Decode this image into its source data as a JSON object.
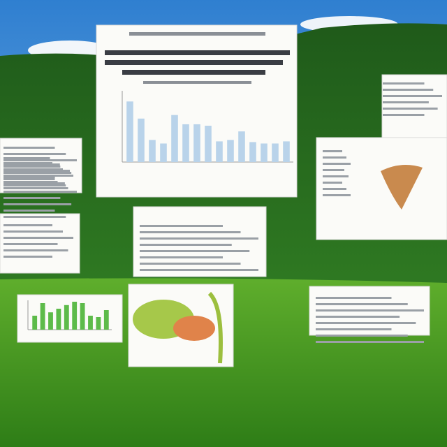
{
  "chart_data": [
    {
      "type": "bar",
      "categories": [
        null,
        null,
        null,
        null,
        null,
        null,
        null,
        null,
        null,
        null,
        null,
        null,
        null,
        null,
        null
      ],
      "values": [
        85,
        61,
        31,
        26,
        66,
        53,
        53,
        51,
        29,
        31,
        43,
        28,
        26,
        26,
        29
      ],
      "color": "#b9d3ea",
      "ylim": [
        0,
        100
      ]
    },
    {
      "type": "bar",
      "categories": [
        null,
        null,
        null,
        null,
        null,
        null,
        null,
        null,
        null,
        null
      ],
      "values": [
        50,
        95,
        62,
        75,
        88,
        100,
        95,
        50,
        45,
        70
      ],
      "color": "#5dbb4a",
      "ylim": [
        0,
        100
      ]
    }
  ]
}
